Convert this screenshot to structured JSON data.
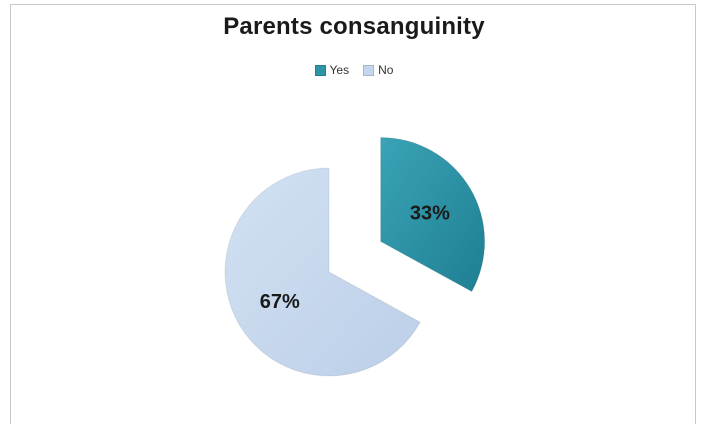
{
  "chart_data": {
    "type": "pie",
    "title": "Parents consanguinity",
    "categories": [
      "Yes",
      "No"
    ],
    "values": [
      33,
      67
    ],
    "data_labels": [
      "33%",
      "67%"
    ],
    "colors": [
      "#2e95a8",
      "#c5d7ee"
    ],
    "legend": "top",
    "exploded_slice": "Yes"
  }
}
